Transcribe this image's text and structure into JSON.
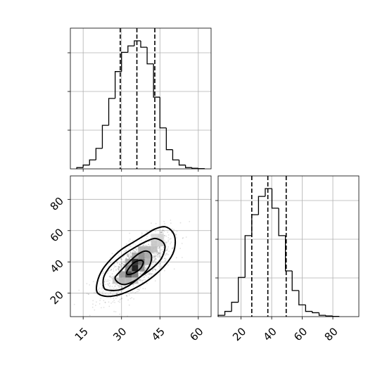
{
  "chart_data": {
    "type": "corner",
    "panels": [
      {
        "id": "hist_param1",
        "type": "histogram",
        "xlim": [
          10,
          65
        ],
        "xticks": [
          15,
          30,
          45,
          60
        ],
        "bin_edges": [
          12.5,
          15,
          17.5,
          20,
          22.5,
          25,
          27.5,
          30,
          32.5,
          35,
          37.5,
          40,
          42.5,
          45,
          47.5,
          50,
          52.5,
          55,
          57.5,
          60,
          62.5
        ],
        "counts": [
          0.01,
          0.03,
          0.07,
          0.16,
          0.34,
          0.55,
          0.76,
          0.91,
          0.96,
          1.0,
          0.95,
          0.82,
          0.56,
          0.32,
          0.15,
          0.07,
          0.03,
          0.01,
          0.005,
          0.002
        ],
        "quantiles": [
          29.5,
          36.0,
          43.0
        ],
        "show_xticklabels": false,
        "grid": true
      },
      {
        "id": "hist_param2",
        "type": "histogram",
        "xlim": [
          5,
          97
        ],
        "xticks": [
          20,
          40,
          60,
          80
        ],
        "xticklabels": [
          "20",
          "40",
          "60",
          "80"
        ],
        "bin_edges": [
          5,
          9.4,
          13.8,
          18.2,
          22.6,
          27,
          31.4,
          35.8,
          40.2,
          44.6,
          49,
          53.4,
          57.8,
          62.2,
          66.6,
          71,
          75.4,
          79.8,
          84.2
        ],
        "counts": [
          0.01,
          0.04,
          0.11,
          0.3,
          0.62,
          0.78,
          0.92,
          0.98,
          0.83,
          0.62,
          0.35,
          0.2,
          0.09,
          0.04,
          0.03,
          0.01,
          0.005,
          0.002
        ],
        "quantiles": [
          27,
          37.5,
          49.5
        ],
        "grid": true
      },
      {
        "id": "scatter_param1_param2",
        "type": "scatter_contour",
        "xlim": [
          10,
          65
        ],
        "ylim": [
          5,
          95
        ],
        "xticks": [
          15,
          30,
          45,
          60
        ],
        "xticklabels": [
          "15",
          "30",
          "45",
          "60"
        ],
        "yticks": [
          20,
          40,
          60,
          80
        ],
        "yticklabels": [
          "20",
          "40",
          "60",
          "80"
        ],
        "mean": [
          36,
          38
        ],
        "std": [
          6.5,
          10
        ],
        "correlation": 0.7,
        "density_blocks": [
          {
            "x": [
              34,
              36.5
            ],
            "y": [
              34,
              38
            ],
            "shade": 0.95
          },
          {
            "x": [
              34,
              36.5
            ],
            "y": [
              38,
              42
            ],
            "shade": 0.85
          },
          {
            "x": [
              31.5,
              34
            ],
            "y": [
              30,
              34
            ],
            "shade": 0.75
          },
          {
            "x": [
              34,
              36.5
            ],
            "y": [
              30,
              34
            ],
            "shade": 0.55
          },
          {
            "x": [
              36.5,
              39
            ],
            "y": [
              38,
              42
            ],
            "shade": 0.6
          },
          {
            "x": [
              31.5,
              34
            ],
            "y": [
              34,
              38
            ],
            "shade": 0.5
          },
          {
            "x": [
              36.5,
              39
            ],
            "y": [
              42,
              46
            ],
            "shade": 0.45
          },
          {
            "x": [
              29,
              31.5
            ],
            "y": [
              30,
              34
            ],
            "shade": 0.4
          },
          {
            "x": [
              36.5,
              39
            ],
            "y": [
              34,
              38
            ],
            "shade": 0.45
          },
          {
            "x": [
              39,
              41.5
            ],
            "y": [
              42,
              46
            ],
            "shade": 0.35
          },
          {
            "x": [
              39,
              41.5
            ],
            "y": [
              46,
              50
            ],
            "shade": 0.3
          },
          {
            "x": [
              29,
              31.5
            ],
            "y": [
              26,
              30
            ],
            "shade": 0.3
          },
          {
            "x": [
              31.5,
              34
            ],
            "y": [
              38,
              42
            ],
            "shade": 0.35
          },
          {
            "x": [
              34,
              36.5
            ],
            "y": [
              42,
              46
            ],
            "shade": 0.35
          },
          {
            "x": [
              39,
              41.5
            ],
            "y": [
              38,
              42
            ],
            "shade": 0.3
          },
          {
            "x": [
              41.5,
              44
            ],
            "y": [
              46,
              50
            ],
            "shade": 0.25
          },
          {
            "x": [
              41.5,
              44
            ],
            "y": [
              50,
              54
            ],
            "shade": 0.22
          },
          {
            "x": [
              26.5,
              29
            ],
            "y": [
              26,
              30
            ],
            "shade": 0.22
          },
          {
            "x": [
              31.5,
              34
            ],
            "y": [
              26,
              30
            ],
            "shade": 0.3
          },
          {
            "x": [
              36.5,
              39
            ],
            "y": [
              46,
              50
            ],
            "shade": 0.3
          },
          {
            "x": [
              34,
              36.5
            ],
            "y": [
              26,
              30
            ],
            "shade": 0.25
          },
          {
            "x": [
              44,
              46.5
            ],
            "y": [
              50,
              54
            ],
            "shade": 0.2
          },
          {
            "x": [
              44,
              46.5
            ],
            "y": [
              54,
              58
            ],
            "shade": 0.18
          },
          {
            "x": [
              41.5,
              44
            ],
            "y": [
              54,
              58
            ],
            "shade": 0.15
          }
        ],
        "contours": [
          [
            [
              32.5,
              32
            ],
            [
              35,
              33
            ],
            [
              37.5,
              36
            ],
            [
              38.5,
              40
            ],
            [
              37,
              41
            ],
            [
              34.5,
              39
            ],
            [
              32.5,
              35
            ],
            [
              32,
              33
            ]
          ],
          [
            [
              28.5,
              27
            ],
            [
              31,
              25.5
            ],
            [
              34,
              27
            ],
            [
              37,
              30
            ],
            [
              40,
              35
            ],
            [
              41.5,
              40
            ],
            [
              41.5,
              45
            ],
            [
              39.5,
              47
            ],
            [
              36.5,
              45
            ],
            [
              33,
              40
            ],
            [
              29.5,
              34
            ],
            [
              27.5,
              30
            ]
          ],
          [
            [
              23,
              24
            ],
            [
              24.5,
              22
            ],
            [
              29,
              22
            ],
            [
              33,
              25
            ],
            [
              37,
              30
            ],
            [
              42,
              36
            ],
            [
              45.5,
              42
            ],
            [
              47,
              49
            ],
            [
              46,
              53
            ],
            [
              43,
              55
            ],
            [
              39.5,
              53
            ],
            [
              36,
              50
            ],
            [
              32,
              46
            ],
            [
              28,
              41
            ],
            [
              25,
              36
            ],
            [
              23,
              30
            ]
          ],
          [
            [
              20.5,
              20.5
            ],
            [
              24,
              18
            ],
            [
              29,
              19
            ],
            [
              35,
              23
            ],
            [
              41,
              29
            ],
            [
              46.5,
              37
            ],
            [
              50,
              45
            ],
            [
              51,
              53
            ],
            [
              50,
              59
            ],
            [
              47,
              62.5
            ],
            [
              43,
              61
            ],
            [
              39,
              57
            ],
            [
              35,
              53
            ],
            [
              30,
              48
            ],
            [
              26,
              42
            ],
            [
              22.5,
              35
            ],
            [
              20.5,
              27
            ]
          ]
        ]
      }
    ]
  }
}
